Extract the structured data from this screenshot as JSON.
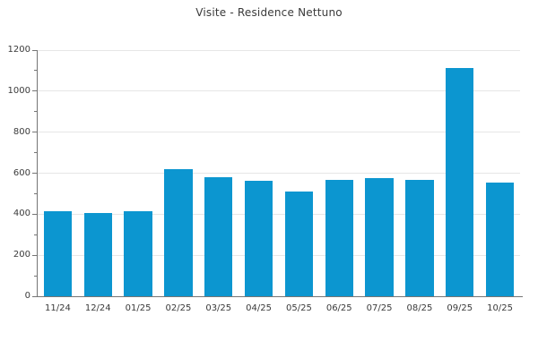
{
  "chart_data": {
    "type": "bar",
    "title": "Visite - Residence Nettuno",
    "categories": [
      "11/24",
      "12/24",
      "01/25",
      "02/25",
      "03/25",
      "04/25",
      "05/25",
      "06/25",
      "07/25",
      "08/25",
      "09/25",
      "10/25"
    ],
    "values": [
      415,
      405,
      415,
      618,
      582,
      562,
      512,
      566,
      574,
      566,
      1113,
      554
    ],
    "xlabel": "",
    "ylabel": "",
    "ylim": [
      0,
      1200
    ],
    "y_major_ticks": [
      0,
      200,
      400,
      600,
      800,
      1000,
      1200
    ],
    "y_minor_step": 100,
    "grid": "horizontal-major-only",
    "legend": "none",
    "bar_color": "#0c96d0",
    "grid_color": "#e6e6e6",
    "axis_color": "#757575",
    "text_color": "#3a3a3a"
  }
}
